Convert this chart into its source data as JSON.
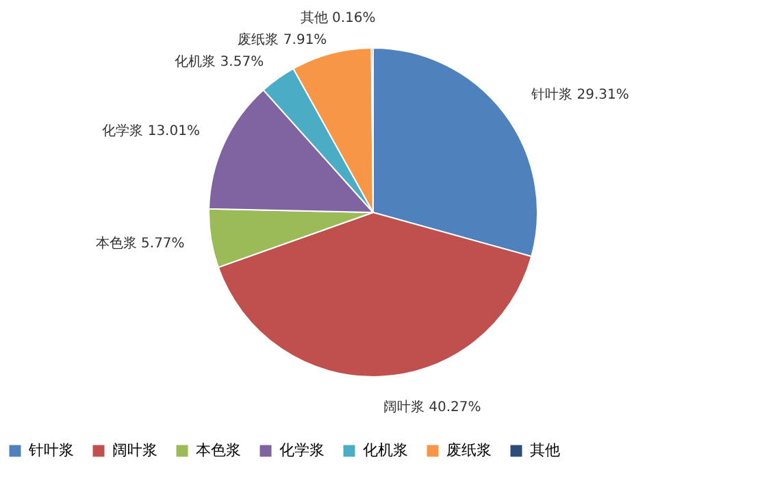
{
  "chart_data": {
    "type": "pie",
    "categories": [
      "针叶浆",
      "阔叶浆",
      "本色浆",
      "化学浆",
      "化机浆",
      "废纸浆",
      "其他"
    ],
    "values": [
      29.31,
      40.27,
      5.77,
      13.01,
      3.57,
      7.91,
      0.16
    ],
    "value_labels": [
      "29.31%",
      "40.27%",
      "5.77%",
      "13.01%",
      "3.57%",
      "7.91%",
      "0.16%"
    ],
    "colors": [
      "#4f81bd",
      "#c0504d",
      "#9bbb59",
      "#8064a2",
      "#4bacc6",
      "#f79646",
      "#2c4d75"
    ],
    "legend": "bottom"
  }
}
